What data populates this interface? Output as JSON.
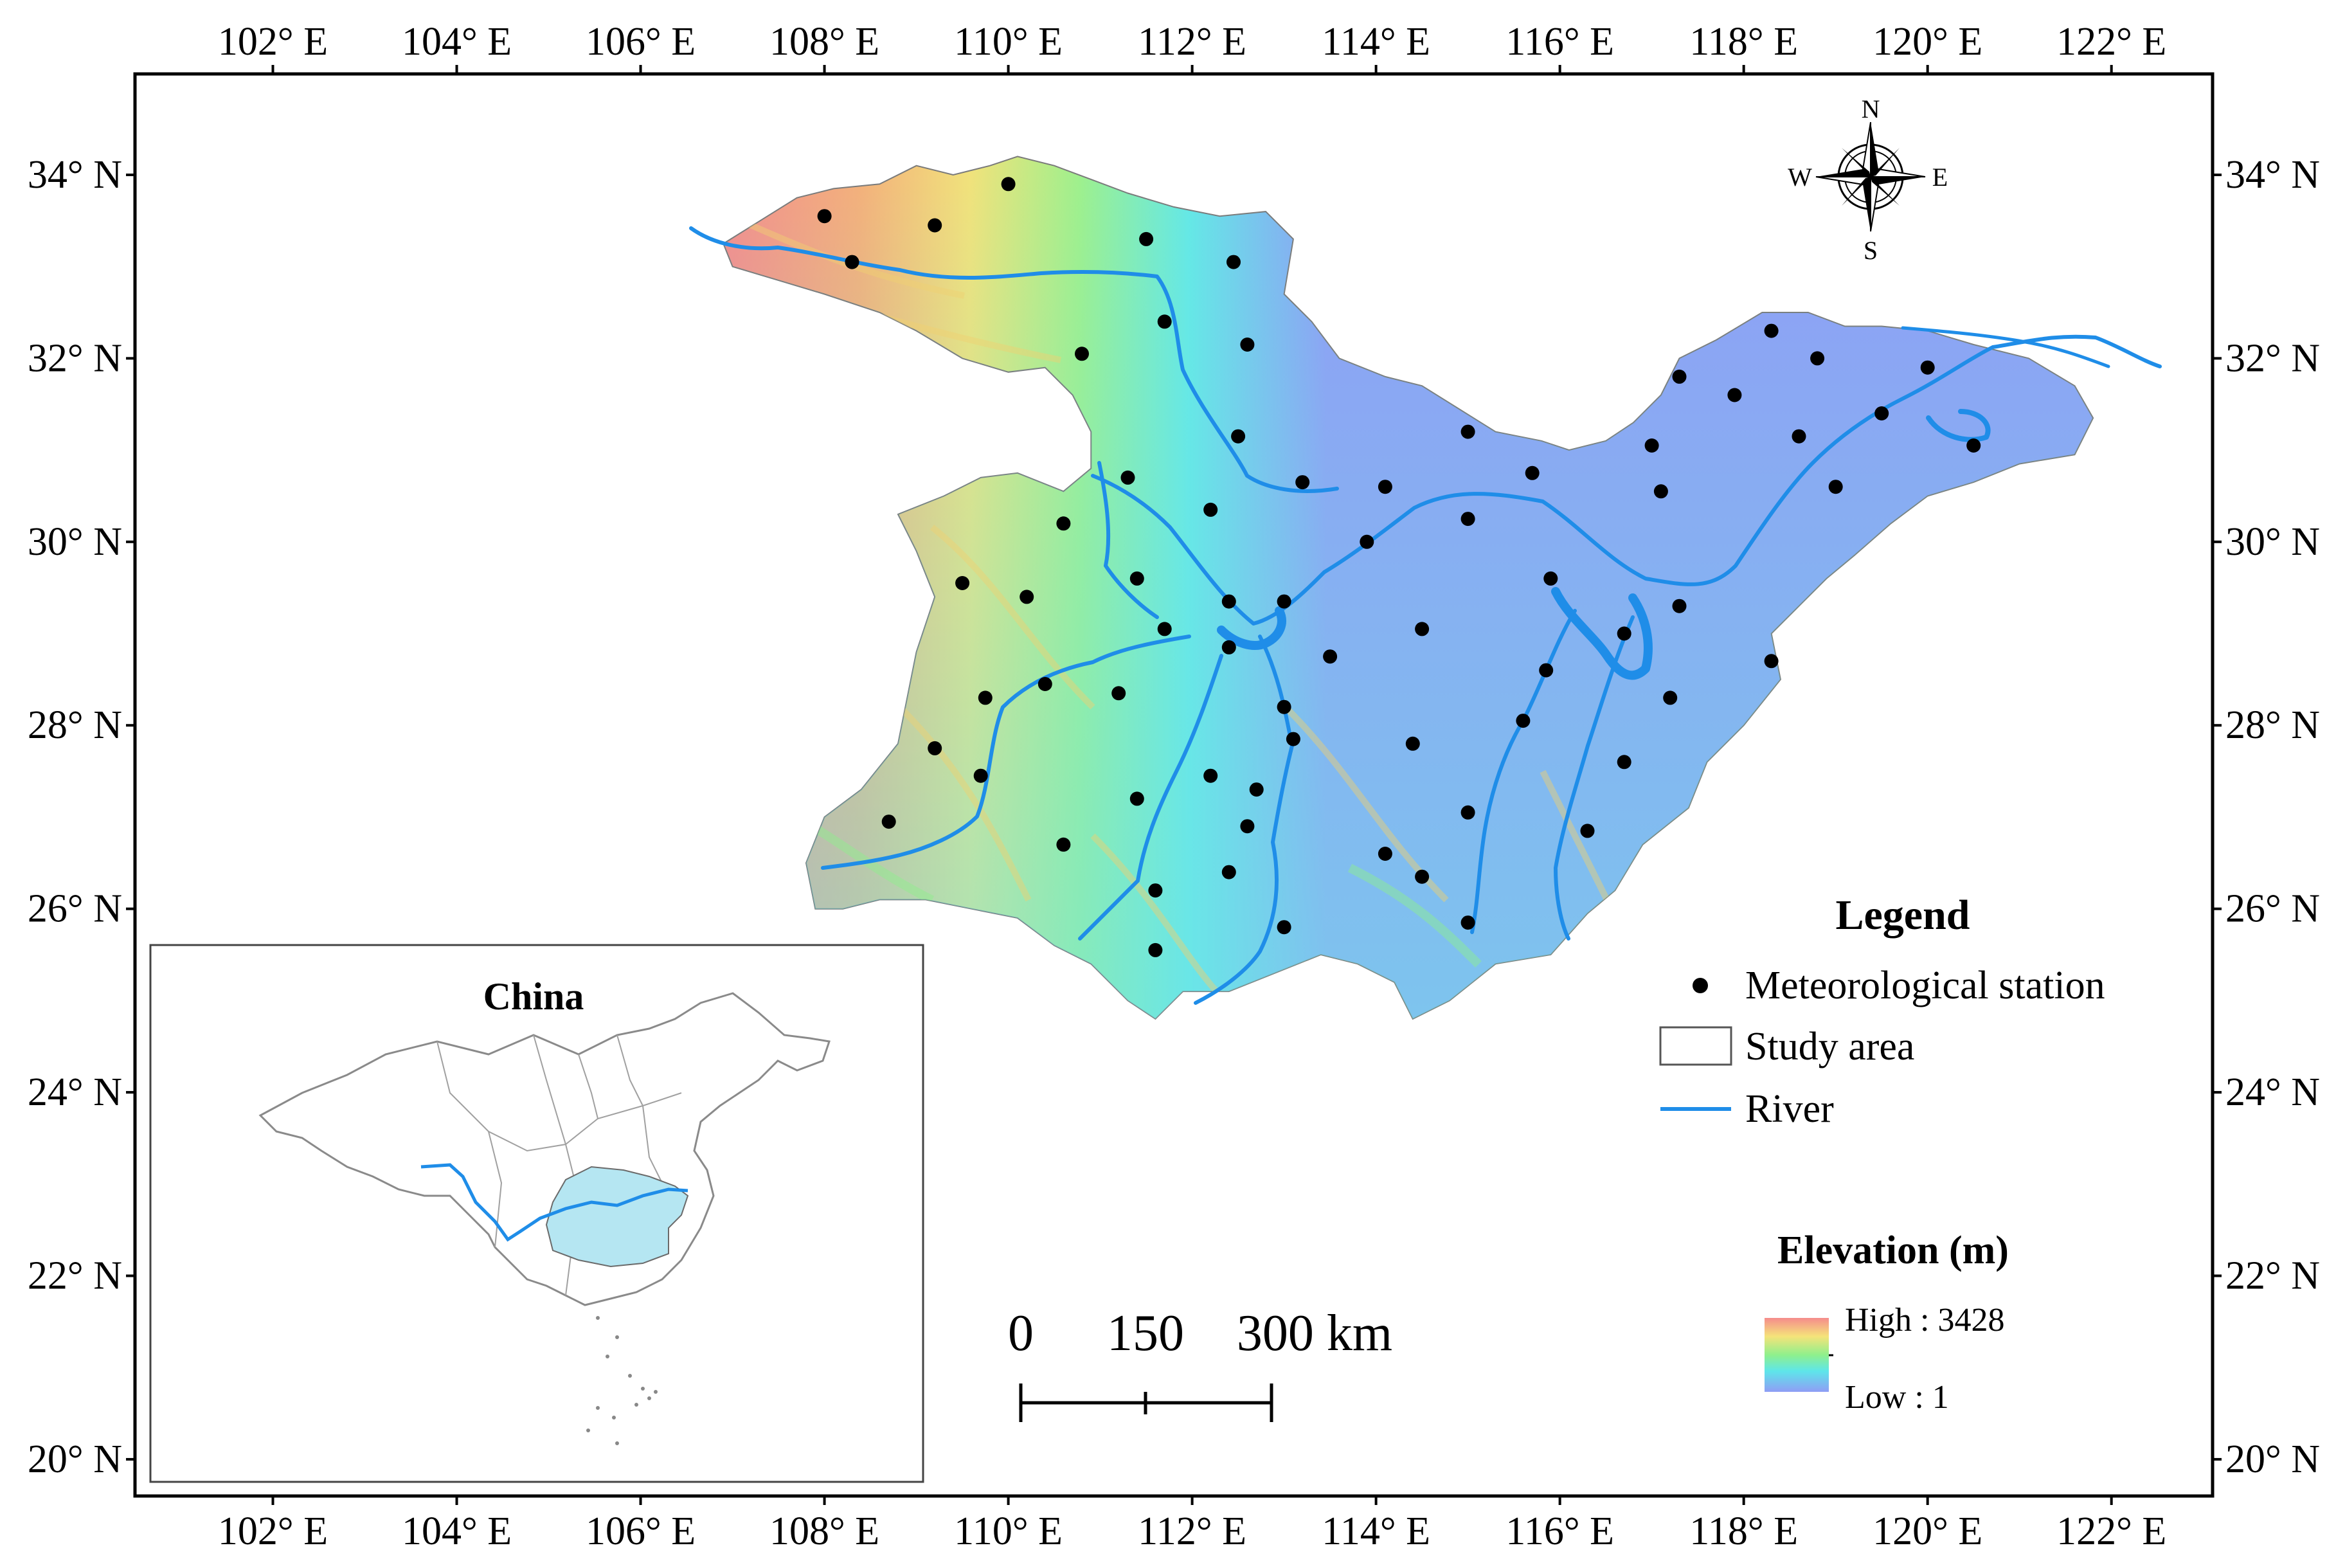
{
  "axes": {
    "lon_labels": [
      "102° E",
      "104° E",
      "106° E",
      "108° E",
      "110° E",
      "112° E",
      "114° E",
      "116° E",
      "118° E",
      "120° E",
      "122° E"
    ],
    "lat_labels": [
      "34° N",
      "32° N",
      "30° N",
      "28° N",
      "26° N",
      "24° N",
      "22° N",
      "20° N"
    ],
    "lon_range": [
      100.5,
      123.1
    ],
    "lat_range": [
      19.6,
      35.1
    ]
  },
  "legend": {
    "title": "Legend",
    "station_label": "Meteorological station",
    "study_area_label": "Study area",
    "river_label": "River"
  },
  "elevation": {
    "title": "Elevation (m)",
    "high_label": "High : 3428",
    "low_label": "Low : 1",
    "high_value": 3428,
    "low_value": 1
  },
  "scale_bar": {
    "labels": [
      "0",
      "150",
      "300 km"
    ]
  },
  "compass": {
    "north": "N",
    "south": "S",
    "east": "E",
    "west": "W"
  },
  "inset": {
    "title": "China"
  },
  "colors": {
    "river": "#1f8de8",
    "lowland": "#8f9df5",
    "highland": "#f58c8c",
    "station": "#000000",
    "inset_highlight": "#b5e6f2"
  },
  "stations": [
    [
      108.0,
      33.55
    ],
    [
      109.2,
      33.45
    ],
    [
      110.0,
      33.9
    ],
    [
      108.3,
      33.05
    ],
    [
      111.5,
      33.3
    ],
    [
      112.45,
      33.05
    ],
    [
      111.7,
      32.4
    ],
    [
      110.8,
      32.05
    ],
    [
      112.6,
      32.15
    ],
    [
      112.5,
      31.15
    ],
    [
      111.3,
      30.7
    ],
    [
      110.6,
      30.2
    ],
    [
      112.2,
      30.35
    ],
    [
      113.2,
      30.65
    ],
    [
      114.1,
      30.6
    ],
    [
      115.0,
      31.2
    ],
    [
      115.7,
      30.75
    ],
    [
      115.0,
      30.25
    ],
    [
      113.9,
      30.0
    ],
    [
      109.5,
      29.55
    ],
    [
      110.2,
      29.4
    ],
    [
      111.4,
      29.6
    ],
    [
      111.7,
      29.05
    ],
    [
      112.4,
      29.35
    ],
    [
      112.4,
      28.85
    ],
    [
      113.0,
      29.35
    ],
    [
      113.5,
      28.75
    ],
    [
      114.5,
      29.05
    ],
    [
      115.9,
      29.6
    ],
    [
      115.85,
      28.6
    ],
    [
      116.7,
      29.0
    ],
    [
      117.3,
      29.3
    ],
    [
      109.75,
      28.3
    ],
    [
      110.4,
      28.45
    ],
    [
      111.2,
      28.35
    ],
    [
      113.0,
      28.2
    ],
    [
      113.1,
      27.85
    ],
    [
      109.2,
      27.75
    ],
    [
      109.7,
      27.45
    ],
    [
      111.4,
      27.2
    ],
    [
      112.2,
      27.45
    ],
    [
      112.7,
      27.3
    ],
    [
      112.6,
      26.9
    ],
    [
      114.4,
      27.8
    ],
    [
      115.6,
      28.05
    ],
    [
      117.2,
      28.3
    ],
    [
      116.7,
      27.6
    ],
    [
      115.0,
      27.05
    ],
    [
      116.3,
      26.85
    ],
    [
      108.7,
      26.95
    ],
    [
      110.6,
      26.7
    ],
    [
      111.6,
      26.2
    ],
    [
      112.4,
      26.4
    ],
    [
      113.0,
      25.8
    ],
    [
      114.1,
      26.6
    ],
    [
      114.5,
      26.35
    ],
    [
      115.0,
      25.85
    ],
    [
      111.6,
      25.55
    ],
    [
      118.3,
      28.7
    ],
    [
      117.3,
      31.8
    ],
    [
      117.9,
      31.6
    ],
    [
      118.3,
      32.3
    ],
    [
      118.8,
      32.0
    ],
    [
      120.0,
      31.9
    ],
    [
      119.5,
      31.4
    ],
    [
      118.6,
      31.15
    ],
    [
      117.0,
      31.05
    ],
    [
      117.1,
      30.55
    ],
    [
      119.0,
      30.6
    ],
    [
      120.5,
      31.05
    ]
  ]
}
